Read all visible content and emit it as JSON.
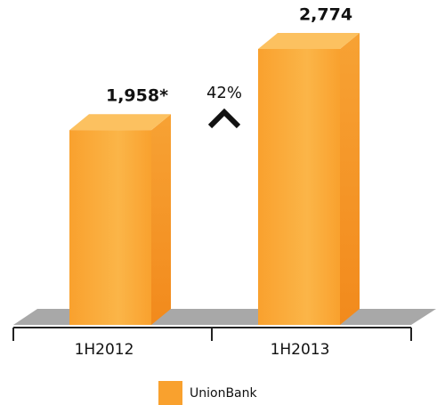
{
  "chart_data": {
    "type": "bar3d",
    "categories": [
      "1H2012",
      "1H2013"
    ],
    "series": [
      {
        "name": "UnionBank",
        "color": "#f9a12e",
        "values": [
          1958,
          2774
        ]
      }
    ],
    "value_labels": [
      "1,958*",
      "2,774"
    ],
    "annotation": "42%",
    "legend": "bottom"
  }
}
